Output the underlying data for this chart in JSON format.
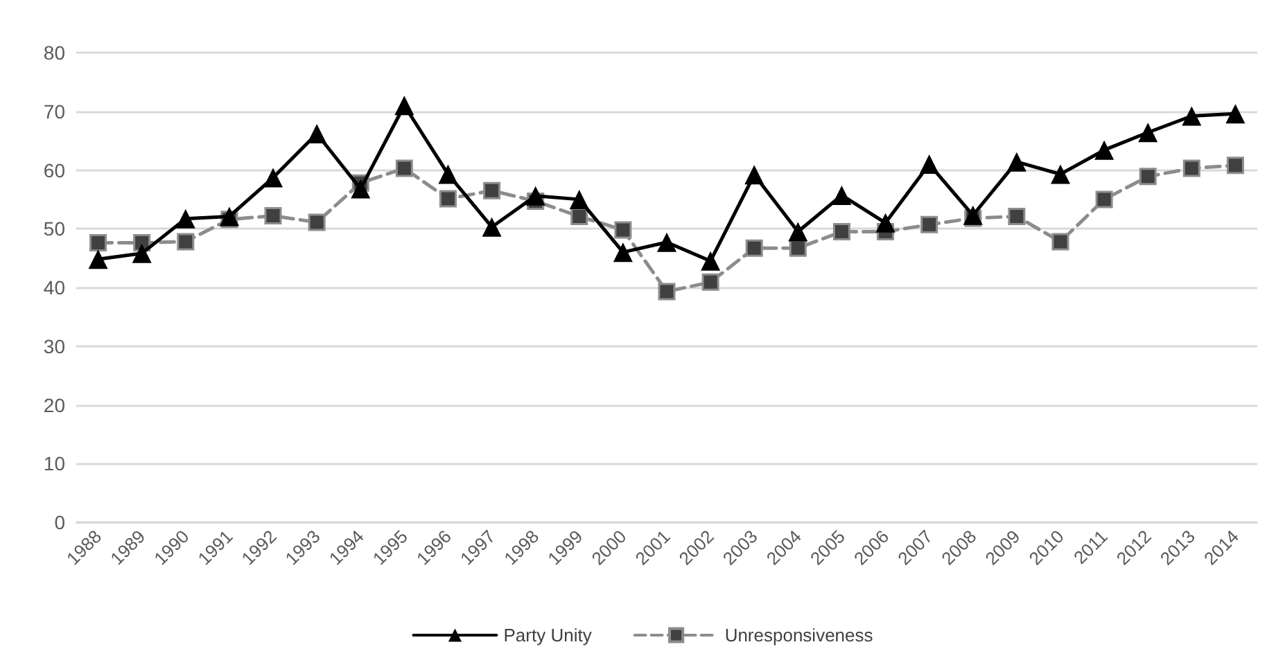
{
  "chart_data": {
    "type": "line",
    "categories": [
      "1988",
      "1989",
      "1990",
      "1991",
      "1992",
      "1993",
      "1994",
      "1995",
      "1996",
      "1997",
      "1998",
      "1999",
      "2000",
      "2001",
      "2002",
      "2003",
      "2004",
      "2005",
      "2006",
      "2007",
      "2008",
      "2009",
      "2010",
      "2011",
      "2012",
      "2013",
      "2014"
    ],
    "series": [
      {
        "name": "Party Unity",
        "color": "#000000",
        "marker": "triangle",
        "line_style": "solid",
        "values": [
          44.8,
          45.8,
          51.7,
          52.1,
          58.7,
          66.2,
          56.8,
          71,
          59.3,
          50.3,
          55.6,
          55,
          46,
          47.7,
          44.5,
          59.2,
          49.5,
          55.7,
          51,
          61,
          52.3,
          61.4,
          59.3,
          63.4,
          66.4,
          69.2,
          69.6
        ]
      },
      {
        "name": "Unresponsiveness",
        "color": "#8c8c8c",
        "marker": "square",
        "line_style": "dashed",
        "values": [
          47.6,
          47.6,
          47.8,
          51.6,
          52.2,
          51.1,
          57.8,
          60.3,
          55.1,
          56.5,
          54.7,
          52.1,
          49.8,
          39.3,
          40.9,
          46.7,
          46.7,
          49.5,
          49.5,
          50.7,
          51.8,
          52.1,
          47.8,
          55,
          58.9,
          60.3,
          60.8
        ]
      }
    ],
    "ylim": [
      0,
      80
    ],
    "yticks": [
      0,
      10,
      20,
      30,
      40,
      50,
      60,
      70,
      80
    ],
    "grid": "y",
    "legend": "bottom"
  }
}
